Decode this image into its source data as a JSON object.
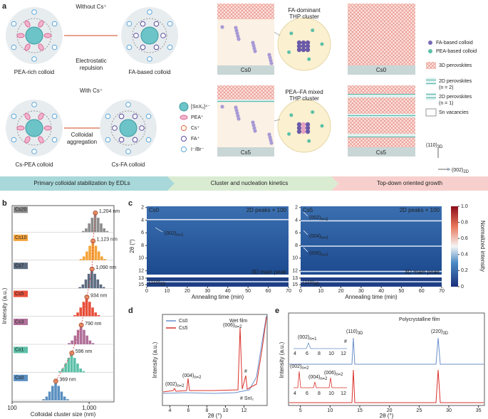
{
  "panel_a": {
    "label": "a",
    "without_cs": "Without Cs⁺",
    "with_cs": "With Cs⁺",
    "repulsion": [
      "Electrostatic",
      "repulsion"
    ],
    "aggregation": [
      "Colloidal",
      "aggregation"
    ],
    "colloids": [
      "PEA-rich colloid",
      "FA-based colloid",
      "Cs-PEA colloid",
      "Cs-FA colloid"
    ],
    "legend_ions": [
      "[SnX₆]⁴⁻",
      "PEA⁺",
      "Cs⁺",
      "FA⁺",
      "I⁻/Br⁻"
    ],
    "samples": [
      "Cs0",
      "Cs5"
    ],
    "clusters": [
      [
        "FA-dominant",
        "THP cluster"
      ],
      [
        "PEA–FA mixed",
        "THP cluster"
      ]
    ],
    "legend_colloids": [
      "FA-based colloid",
      "PEA-based colloid"
    ],
    "legend_perovskites": [
      [
        "3D perovskites"
      ],
      [
        "2D perovskites",
        "(n = 2)"
      ],
      [
        "2D perovskites",
        "(n = 1)"
      ],
      [
        "Sn vacancies"
      ]
    ],
    "axes": {
      "vertical": {
        "text": "(110)",
        "sub": "3D"
      },
      "horizontal": {
        "text": "(002)",
        "sub": "2D"
      }
    }
  },
  "banner": [
    "Primary colloidal stabilization by EDLs",
    "Cluster and nucleation kinetics",
    "Top-down oriented growth"
  ],
  "panel_b": {
    "label": "b",
    "type": "dot",
    "categories": [
      "Cs20",
      "Cs10",
      "Cs7",
      "Cs5",
      "Cs3",
      "Cs1",
      "Cs0"
    ],
    "values": [
      1204,
      1123,
      1090,
      934,
      790,
      596,
      369
    ],
    "value_labels": [
      "1,204 nm",
      "1,123 nm",
      "1,090 nm",
      "934 nm",
      "790 nm",
      "596 nm",
      "369 nm"
    ],
    "colors": [
      "#8c8c8c",
      "#f5a33a",
      "#5c6b80",
      "#e8503a",
      "#b0709a",
      "#5cc0a8",
      "#5a8fc0"
    ],
    "log_x": true,
    "xlim": [
      100,
      2100
    ],
    "xticks": [
      100,
      {
        "value": 1000,
        "label": "1,000"
      }
    ],
    "xlabel": "Colloidal cluster size (nm)",
    "ylabel": "Intensity (a.u.)"
  },
  "panel_c": {
    "label": "c",
    "ylabel": "2θ (°)",
    "xlabel": "Annealing time (min)",
    "xlim": [
      0,
      70
    ],
    "xticks": [
      0,
      10,
      20,
      30,
      40,
      50,
      60,
      70
    ],
    "ylim_upper": [
      1.8,
      12.6
    ],
    "yticks_upper": [
      2,
      4,
      6,
      8,
      10,
      12
    ],
    "ylim_lower": [
      12.8,
      15.6
    ],
    "yticks_lower": [
      13,
      15
    ],
    "colorbar": {
      "label": "Normalized intensity",
      "clim": [
        0,
        1
      ],
      "ticks": [
        0,
        0.2,
        0.4,
        0.6,
        0.8,
        {
          "value": 1,
          "label": "1.0"
        }
      ]
    },
    "maps": [
      {
        "sample": "Cs0",
        "upper_note": "2D peaks × 100",
        "lower_note": "3D main peak",
        "bright_lines": [
          3.9,
          14.1
        ],
        "peaks": [
          {
            "text": "(002)",
            "sub": "n=1"
          }
        ],
        "main": {
          "text": "(110)",
          "sub": "3D"
        }
      },
      {
        "sample": "Cs5",
        "upper_note": "2D peaks × 100",
        "lower_note": "3D main peak",
        "bright_lines": [
          4.1,
          8.1,
          12.1,
          14.1
        ],
        "peaks": [
          {
            "text": "(002)",
            "sub": "n=2"
          },
          {
            "text": "(004)",
            "sub": "n=2"
          },
          {
            "text": "(006)",
            "sub": "n=2"
          }
        ],
        "main": {
          "text": "(110)",
          "sub": "3D"
        }
      }
    ]
  },
  "panel_d": {
    "label": "d",
    "note": "Wet film",
    "series": [
      {
        "name": "Cs0",
        "color": "#6a8fc9"
      },
      {
        "name": "Cs5",
        "color": "#d9312b"
      }
    ],
    "peaks": [
      {
        "text": "(002)",
        "sub": "n=2"
      },
      {
        "text": "(004)",
        "sub": "n=2"
      },
      {
        "text": "(006)",
        "sub": "n=2"
      }
    ],
    "hash": "#",
    "impurity": "# SnI₂",
    "xlim": [
      3.2,
      14.5
    ],
    "xticks": [
      4,
      6,
      8,
      10,
      12
    ],
    "xlabel": "2θ (°)",
    "ylabel": "Intensity (a.u.)"
  },
  "panel_e": {
    "label": "e",
    "note": "Polycrystalline film",
    "main_peaks": [
      {
        "text": "(110)",
        "sub": "3D"
      },
      {
        "text": "(220)",
        "sub": "3D"
      }
    ],
    "inset_top": {
      "peak": {
        "text": "(002)",
        "sub": "n=1"
      },
      "hash": "#"
    },
    "inset_bottom": [
      {
        "text": "(002)",
        "sub": "n=2"
      },
      {
        "text": "(004)",
        "sub": "n=2"
      },
      {
        "text": "(006)",
        "sub": "n=2"
      }
    ],
    "inset_ticks": [
      4,
      6,
      8,
      10,
      12
    ],
    "xlim": [
      3,
      36
    ],
    "xticks": [
      5,
      10,
      15,
      20,
      25,
      30,
      35
    ],
    "xlabel": "2θ (°)",
    "ylabel": "Intensity (a.u.)"
  }
}
